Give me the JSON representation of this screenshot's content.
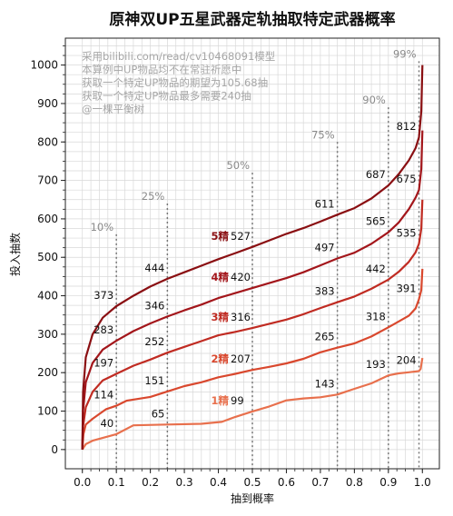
{
  "chart_data": {
    "type": "line",
    "title": "原神双UP五星武器定轨抽取特定武器概率",
    "xlabel": "抽到概率",
    "ylabel": "投入抽数",
    "xlim": [
      -0.05,
      1.05
    ],
    "ylim": [
      -50,
      1070
    ],
    "x_ticks": [
      "0.0",
      "0.1",
      "0.2",
      "0.3",
      "0.4",
      "0.5",
      "0.6",
      "0.7",
      "0.8",
      "0.9",
      "1.0"
    ],
    "y_ticks": [
      "0",
      "100",
      "200",
      "300",
      "400",
      "500",
      "600",
      "700",
      "800",
      "900",
      "1000"
    ],
    "grid": true,
    "notes": [
      "采用bilibili.com/read/cv10468091模型",
      "本算例中UP物品均不在常驻祈愿中",
      "获取一个特定UP物品的期望为105.68抽",
      "获取一个特定UP物品最多需要240抽",
      "@一棵平衡树"
    ],
    "percentiles": [
      {
        "x": 0.1,
        "label": "10%"
      },
      {
        "x": 0.25,
        "label": "25%"
      },
      {
        "x": 0.5,
        "label": "50%"
      },
      {
        "x": 0.75,
        "label": "75%"
      },
      {
        "x": 0.9,
        "label": "90%"
      },
      {
        "x": 0.99,
        "label": "99%"
      }
    ],
    "series": [
      {
        "name": "1精",
        "color": "#e8704d",
        "label_value": "99",
        "points": [
          [
            0,
            0
          ],
          [
            0.01,
            14
          ],
          [
            0.03,
            23
          ],
          [
            0.1,
            40
          ],
          [
            0.15,
            63
          ],
          [
            0.25,
            65
          ],
          [
            0.35,
            67
          ],
          [
            0.41,
            72
          ],
          [
            0.45,
            85
          ],
          [
            0.5,
            99
          ],
          [
            0.55,
            112
          ],
          [
            0.6,
            128
          ],
          [
            0.65,
            133
          ],
          [
            0.7,
            136
          ],
          [
            0.75,
            143
          ],
          [
            0.8,
            158
          ],
          [
            0.85,
            172
          ],
          [
            0.9,
            193
          ],
          [
            0.93,
            198
          ],
          [
            0.96,
            201
          ],
          [
            0.99,
            204
          ],
          [
            0.995,
            210
          ],
          [
            1.0,
            238
          ]
        ],
        "labels": [
          "40",
          "65",
          "143",
          "193",
          "204"
        ]
      },
      {
        "name": "2精",
        "color": "#d9482e",
        "label_value": "207",
        "points": [
          [
            0,
            0
          ],
          [
            0.003,
            40
          ],
          [
            0.01,
            65
          ],
          [
            0.03,
            80
          ],
          [
            0.07,
            105
          ],
          [
            0.1,
            114
          ],
          [
            0.13,
            127
          ],
          [
            0.2,
            137
          ],
          [
            0.25,
            151
          ],
          [
            0.3,
            165
          ],
          [
            0.35,
            175
          ],
          [
            0.4,
            188
          ],
          [
            0.45,
            197
          ],
          [
            0.5,
            207
          ],
          [
            0.55,
            215
          ],
          [
            0.6,
            224
          ],
          [
            0.65,
            236
          ],
          [
            0.7,
            253
          ],
          [
            0.75,
            265
          ],
          [
            0.8,
            276
          ],
          [
            0.85,
            294
          ],
          [
            0.9,
            318
          ],
          [
            0.93,
            333
          ],
          [
            0.96,
            348
          ],
          [
            0.98,
            367
          ],
          [
            0.99,
            391
          ],
          [
            0.997,
            415
          ],
          [
            1.0,
            470
          ]
        ],
        "labels": [
          "114",
          "151",
          "265",
          "318",
          "391"
        ]
      },
      {
        "name": "3精",
        "color": "#c02b22",
        "label_value": "316",
        "points": [
          [
            0,
            0
          ],
          [
            0.002,
            60
          ],
          [
            0.01,
            110
          ],
          [
            0.03,
            150
          ],
          [
            0.06,
            180
          ],
          [
            0.1,
            197
          ],
          [
            0.15,
            218
          ],
          [
            0.2,
            234
          ],
          [
            0.25,
            252
          ],
          [
            0.3,
            267
          ],
          [
            0.35,
            282
          ],
          [
            0.4,
            297
          ],
          [
            0.45,
            306
          ],
          [
            0.5,
            316
          ],
          [
            0.55,
            327
          ],
          [
            0.6,
            338
          ],
          [
            0.65,
            352
          ],
          [
            0.7,
            368
          ],
          [
            0.75,
            383
          ],
          [
            0.8,
            398
          ],
          [
            0.85,
            418
          ],
          [
            0.9,
            442
          ],
          [
            0.93,
            462
          ],
          [
            0.96,
            488
          ],
          [
            0.98,
            513
          ],
          [
            0.99,
            535
          ],
          [
            0.997,
            575
          ],
          [
            1.0,
            650
          ]
        ],
        "labels": [
          "197",
          "252",
          "383",
          "442",
          "535"
        ]
      },
      {
        "name": "4精",
        "color": "#a3161b",
        "label_value": "420",
        "points": [
          [
            0,
            0
          ],
          [
            0.002,
            100
          ],
          [
            0.01,
            175
          ],
          [
            0.03,
            225
          ],
          [
            0.06,
            260
          ],
          [
            0.1,
            283
          ],
          [
            0.15,
            308
          ],
          [
            0.2,
            328
          ],
          [
            0.25,
            346
          ],
          [
            0.3,
            362
          ],
          [
            0.35,
            377
          ],
          [
            0.4,
            394
          ],
          [
            0.45,
            407
          ],
          [
            0.5,
            420
          ],
          [
            0.55,
            433
          ],
          [
            0.6,
            446
          ],
          [
            0.65,
            461
          ],
          [
            0.7,
            479
          ],
          [
            0.75,
            497
          ],
          [
            0.8,
            512
          ],
          [
            0.85,
            535
          ],
          [
            0.9,
            565
          ],
          [
            0.93,
            590
          ],
          [
            0.96,
            625
          ],
          [
            0.98,
            655
          ],
          [
            0.99,
            675
          ],
          [
            0.997,
            730
          ],
          [
            1.0,
            830
          ]
        ],
        "labels": [
          "283",
          "346",
          "497",
          "565",
          "675"
        ]
      },
      {
        "name": "5精",
        "color": "#8a0f12",
        "label_value": "527",
        "points": [
          [
            0,
            0
          ],
          [
            0.002,
            150
          ],
          [
            0.01,
            240
          ],
          [
            0.03,
            300
          ],
          [
            0.06,
            343
          ],
          [
            0.1,
            373
          ],
          [
            0.15,
            400
          ],
          [
            0.2,
            424
          ],
          [
            0.25,
            444
          ],
          [
            0.3,
            461
          ],
          [
            0.35,
            478
          ],
          [
            0.4,
            495
          ],
          [
            0.45,
            511
          ],
          [
            0.5,
            527
          ],
          [
            0.55,
            544
          ],
          [
            0.6,
            561
          ],
          [
            0.65,
            576
          ],
          [
            0.7,
            593
          ],
          [
            0.75,
            611
          ],
          [
            0.8,
            628
          ],
          [
            0.85,
            653
          ],
          [
            0.9,
            687
          ],
          [
            0.93,
            716
          ],
          [
            0.96,
            752
          ],
          [
            0.98,
            784
          ],
          [
            0.99,
            812
          ],
          [
            0.997,
            880
          ],
          [
            1.0,
            1000
          ]
        ],
        "labels": [
          "373",
          "444",
          "611",
          "687",
          "812"
        ]
      }
    ]
  }
}
